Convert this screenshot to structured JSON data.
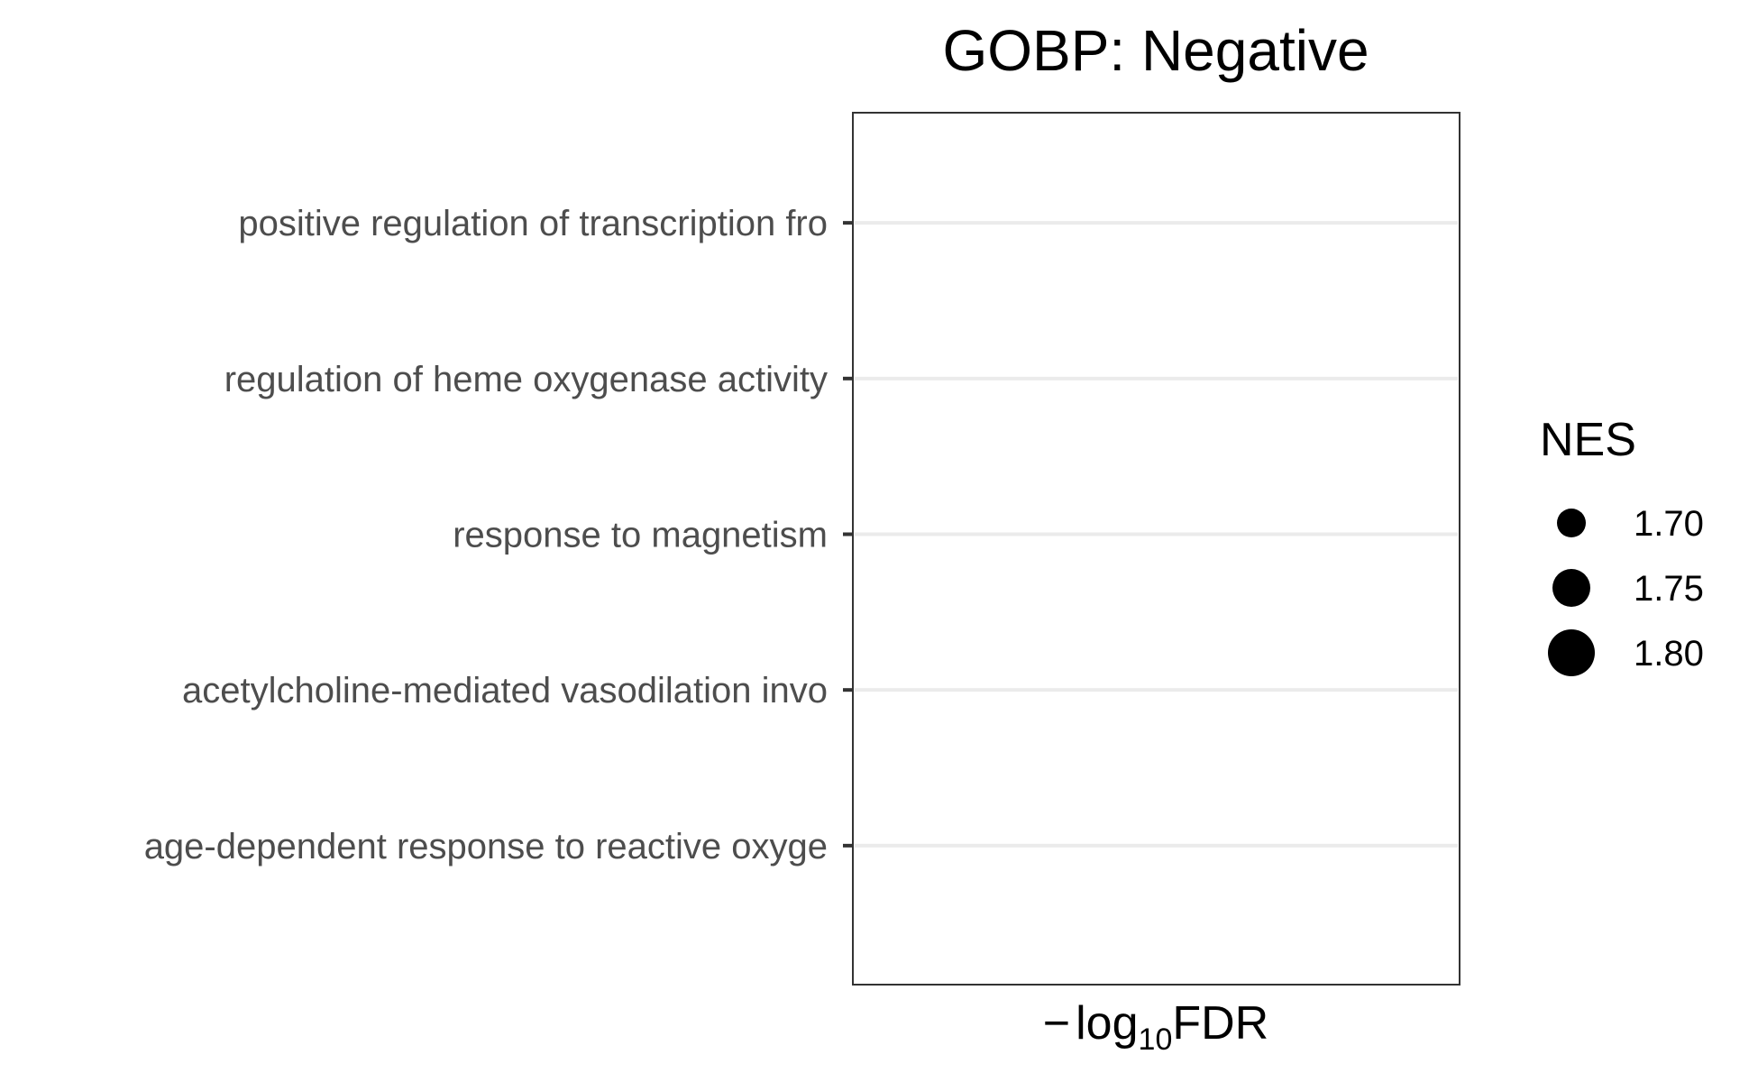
{
  "chart_data": {
    "type": "scatter",
    "title": "GOBP: Negative",
    "xlabel": {
      "prefix": "−",
      "main": "log",
      "sub": "10",
      "suffix": "FDR"
    },
    "categories": [
      "positive regulation of transcription fro",
      "regulation of heme oxygenase activity",
      "response to magnetism",
      "acetylcholine-mediated vasodilation invo",
      "age-dependent response to reactive oxyge"
    ],
    "points": [],
    "grid": true,
    "legend": {
      "title": "NES",
      "placement": "right",
      "entries": [
        {
          "label": "1.70",
          "value": 1.7
        },
        {
          "label": "1.75",
          "value": 1.75
        },
        {
          "label": "1.80",
          "value": 1.8
        }
      ]
    },
    "colors": {
      "grid": "#ebebeb",
      "panel_border": "#333333",
      "tick_text": "#4d4d4d",
      "point": "#000000"
    }
  }
}
